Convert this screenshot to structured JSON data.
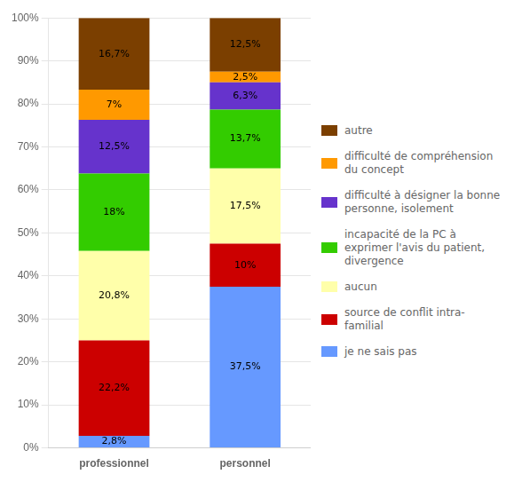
{
  "chart_data": {
    "type": "bar",
    "stacked": true,
    "data_labels": true,
    "grid": true,
    "legend": "right",
    "categories": [
      "professionnel",
      "personnel"
    ],
    "series": [
      {
        "name": "je ne sais pas",
        "color": "#6699FF",
        "values": [
          2.8,
          37.5
        ],
        "value_labels": [
          "2,8%",
          "37,5%"
        ]
      },
      {
        "name": "source de conflit intra-\nfamilial",
        "color": "#CC0000",
        "values": [
          22.2,
          10.0
        ],
        "value_labels": [
          "22,2%",
          "10%"
        ]
      },
      {
        "name": "aucun",
        "color": "#FFFFAA",
        "values": [
          20.8,
          17.5
        ],
        "value_labels": [
          "20,8%",
          "17,5%"
        ]
      },
      {
        "name": "incapacité de la PC à\nexprimer l'avis du patient,\ndivergence",
        "color": "#33CC00",
        "values": [
          18.0,
          13.7
        ],
        "value_labels": [
          "18%",
          "13,7%"
        ]
      },
      {
        "name": "difficulté à désigner la bonne\npersonne, isolement",
        "color": "#6633CC",
        "values": [
          12.5,
          6.3
        ],
        "value_labels": [
          "12,5%",
          "6,3%"
        ]
      },
      {
        "name": "difficulté de compréhension\ndu concept",
        "color": "#FF9900",
        "values": [
          7.0,
          2.5
        ],
        "value_labels": [
          "7%",
          "2,5%"
        ]
      },
      {
        "name": "autre",
        "color": "#7B3F00",
        "values": [
          16.7,
          12.5
        ],
        "value_labels": [
          "16,7%",
          "12,5%"
        ]
      }
    ],
    "ylim": [
      0,
      100
    ],
    "yticks": [
      {
        "value": 0,
        "label": "0%"
      },
      {
        "value": 10,
        "label": "10%"
      },
      {
        "value": 20,
        "label": "20%"
      },
      {
        "value": 30,
        "label": "30%"
      },
      {
        "value": 40,
        "label": "40%"
      },
      {
        "value": 50,
        "label": "50%"
      },
      {
        "value": 60,
        "label": "60%"
      },
      {
        "value": 70,
        "label": "70%"
      },
      {
        "value": 80,
        "label": "80%"
      },
      {
        "value": 90,
        "label": "90%"
      },
      {
        "value": 100,
        "label": "100%"
      }
    ]
  }
}
